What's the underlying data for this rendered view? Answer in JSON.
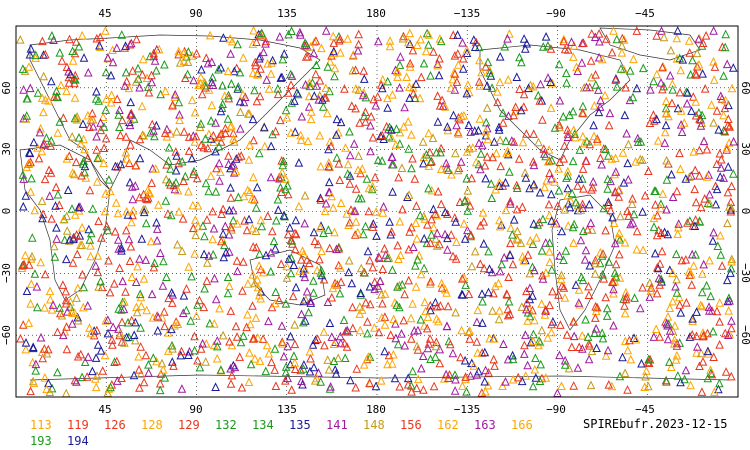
{
  "map": {
    "projection": "cylindrical equidistant",
    "lon_range": [
      0,
      360
    ],
    "lat_range": [
      -90,
      90
    ],
    "top_lon_labels": [
      "45",
      "90",
      "135",
      "180",
      "−135",
      "−90",
      "−45"
    ],
    "bottom_lon_labels": [
      "45",
      "90",
      "135",
      "180",
      "−135",
      "−90",
      "−45"
    ],
    "left_lat_labels": [
      "60",
      "30",
      "0",
      "−30",
      "−60"
    ],
    "right_lat_labels": [
      "60",
      "30",
      "0",
      "−30",
      "−60"
    ],
    "marker": "open-triangle",
    "grid": "dotted"
  },
  "legend": [
    {
      "label": "113",
      "color": "#ffa500"
    },
    {
      "label": "119",
      "color": "#e8361e"
    },
    {
      "label": "126",
      "color": "#e8361e"
    },
    {
      "label": "128",
      "color": "#ffa500"
    },
    {
      "label": "129",
      "color": "#e8361e"
    },
    {
      "label": "132",
      "color": "#1a9a1a"
    },
    {
      "label": "134",
      "color": "#1a9a1a"
    },
    {
      "label": "135",
      "color": "#1a1a9a"
    },
    {
      "label": "141",
      "color": "#a01aa0"
    },
    {
      "label": "148",
      "color": "#c49a1a"
    },
    {
      "label": "156",
      "color": "#e8361e"
    },
    {
      "label": "162",
      "color": "#ffa500"
    },
    {
      "label": "163",
      "color": "#a01aa0"
    },
    {
      "label": "166",
      "color": "#ffa500"
    },
    {
      "label": "193",
      "color": "#1a9a1a"
    },
    {
      "label": "194",
      "color": "#1a1a9a"
    }
  ],
  "source_label": "SPIREbufr.2023-12-15"
}
